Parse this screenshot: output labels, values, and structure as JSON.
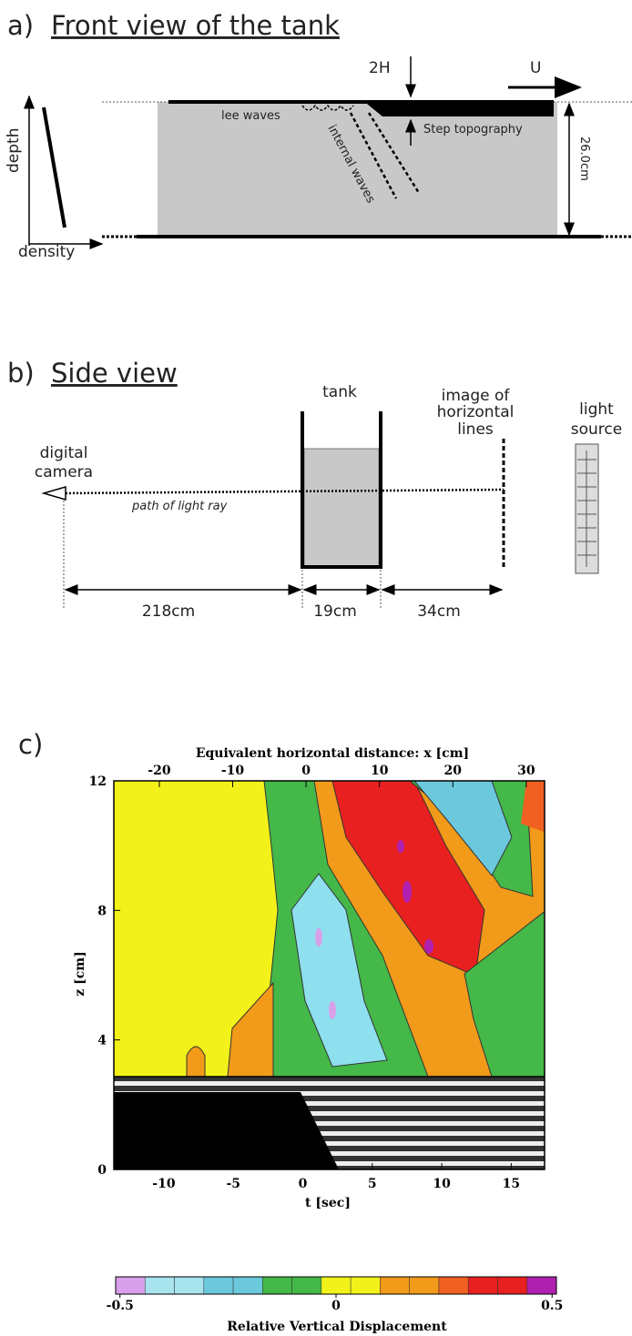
{
  "panel_a": {
    "label": "a)",
    "title": "Front view of the tank",
    "depth": "depth",
    "density": "density",
    "lee_waves": "lee waves",
    "internal_waves": "internal waves",
    "step_height": "2H",
    "speed": "U",
    "step_topography": "Step topography",
    "tank_depth": "26.0cm"
  },
  "panel_b": {
    "label": "b)",
    "title": "Side view",
    "tank": "tank",
    "image": [
      "image of",
      "horizontal",
      "lines"
    ],
    "light_source": [
      "light",
      "source"
    ],
    "camera": [
      "digital",
      "camera"
    ],
    "light_ray": "path of light ray",
    "distances": [
      "218cm",
      "19cm",
      "34cm"
    ]
  },
  "panel_c": {
    "label": "c)",
    "top_axis_label": "Equivalent horizontal distance: x [cm]",
    "x_lim": [
      -26.2,
      32.5
    ],
    "x_ticks": [
      -20,
      -10,
      0,
      10,
      20,
      30
    ],
    "t_lim": [
      -13.6,
      17.4
    ],
    "t_ticks": [
      -10,
      -5,
      0,
      5,
      10,
      15
    ],
    "t_label": "t [sec]",
    "z_lim": [
      0,
      12
    ],
    "z_ticks": [
      0,
      4,
      8,
      12
    ],
    "z_label": "z [cm]",
    "colorbar": {
      "lim": [
        -0.51,
        0.51
      ],
      "ticks": [
        -0.5,
        0,
        0.5
      ],
      "label": "Relative Vertical Displacement"
    }
  }
}
